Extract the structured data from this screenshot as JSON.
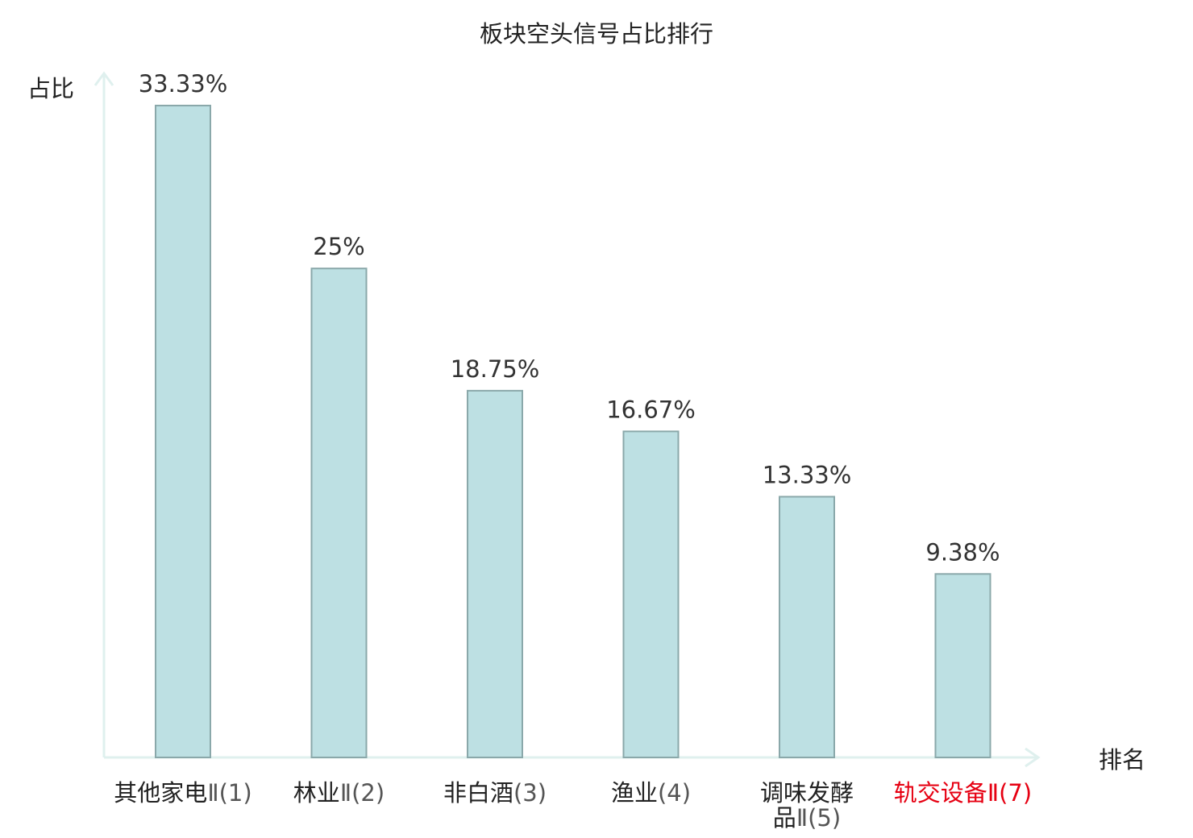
{
  "chart_data": {
    "type": "bar",
    "title": "板块空头信号占比排行",
    "ylabel": "占比",
    "xlabel": "排名",
    "ylim": [
      0,
      33.33
    ],
    "grid": false,
    "categories": [
      {
        "name": "其他家电",
        "suffix": "Ⅱ",
        "rank": "(1)"
      },
      {
        "name": "林业",
        "suffix": "Ⅱ",
        "rank": "(2)"
      },
      {
        "name": "非白酒",
        "suffix": "",
        "rank": "(3)"
      },
      {
        "name": "渔业",
        "suffix": "",
        "rank": "(4)"
      },
      {
        "name": "调味发酵品",
        "suffix": "Ⅱ",
        "rank": "(5)"
      },
      {
        "name": "轨交设备",
        "suffix": "Ⅱ",
        "rank": "(7)"
      }
    ],
    "values": [
      33.33,
      25,
      18.75,
      16.67,
      13.33,
      9.38
    ],
    "value_labels": [
      "33.33%",
      "25%",
      "18.75%",
      "16.67%",
      "13.33%",
      "9.38%"
    ],
    "highlight_index": 5,
    "colors": {
      "bar_fill": "#bde0e3",
      "bar_stroke": "#8aa8aa",
      "axis": "#dff0ee",
      "highlight": "#e60012"
    }
  }
}
